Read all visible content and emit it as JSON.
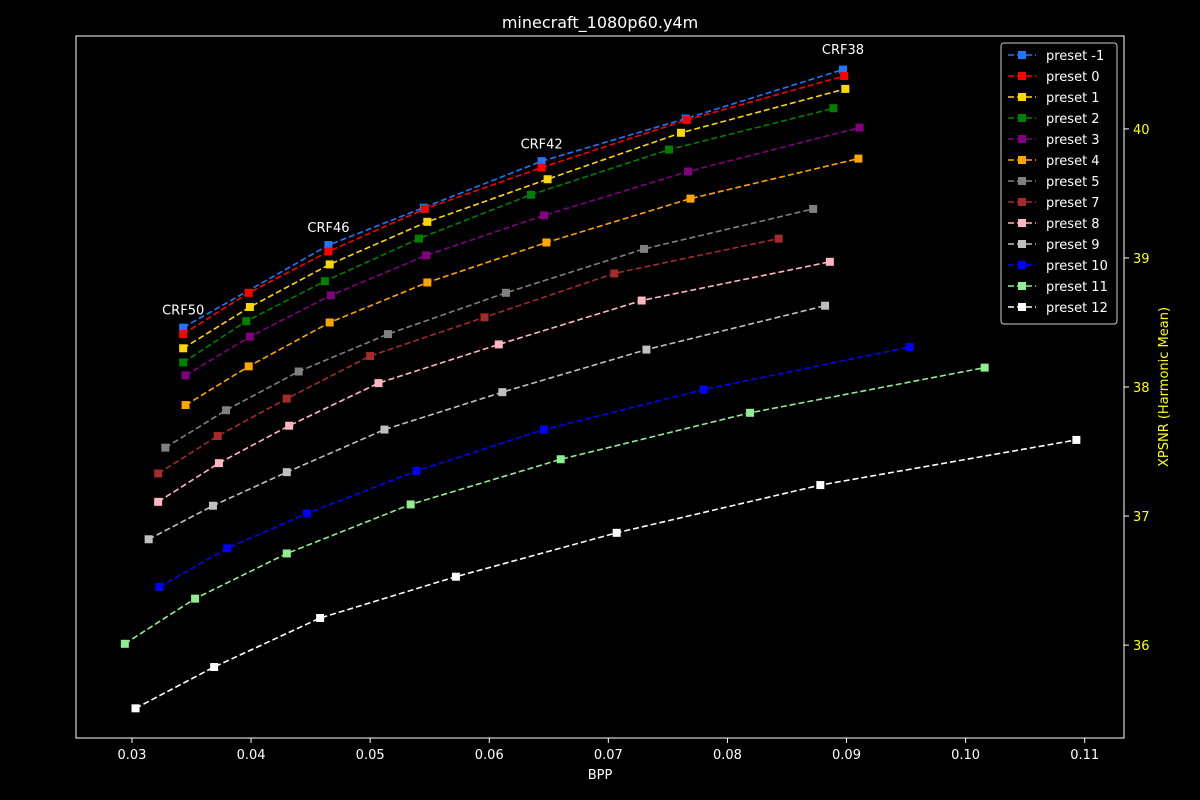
{
  "chart_data": {
    "type": "line",
    "title": "minecraft_1080p60.y4m",
    "xlabel": "BPP",
    "ylabel": "XPSNR (Harmonic Mean)",
    "ylabel_color": "#ffff00",
    "xlim": [
      0.0253,
      0.1133
    ],
    "ylim": [
      35.28,
      40.72
    ],
    "x_ticks": [
      0.03,
      0.04,
      0.05,
      0.06,
      0.07,
      0.08,
      0.09,
      0.1,
      0.11
    ],
    "x_tick_labels": [
      "0.03",
      "0.04",
      "0.05",
      "0.06",
      "0.07",
      "0.08",
      "0.09",
      "0.10",
      "0.11"
    ],
    "y_ticks": [
      36,
      37,
      38,
      39,
      40
    ],
    "y_tick_labels": [
      "36",
      "37",
      "38",
      "39",
      "40"
    ],
    "y_axis_side": "right",
    "y_tick_color": "#ffff00",
    "grid": false,
    "legend_position": "top-right",
    "annotations": [
      {
        "text": "CRF50",
        "x": 0.0343,
        "y": 38.56
      },
      {
        "text": "CRF46",
        "x": 0.0465,
        "y": 39.2
      },
      {
        "text": "CRF42",
        "x": 0.0644,
        "y": 39.85
      },
      {
        "text": "CRF38",
        "x": 0.0897,
        "y": 40.58
      }
    ],
    "series": [
      {
        "name": "preset -1",
        "color": "#1f77ff",
        "x": [
          0.0343,
          0.0465,
          0.0545,
          0.0644,
          0.0765,
          0.0897
        ],
        "y": [
          38.46,
          39.1,
          39.39,
          39.75,
          40.08,
          40.46
        ]
      },
      {
        "name": "preset 0",
        "color": "#ff0000",
        "x": [
          0.0343,
          0.0398,
          0.0465,
          0.0546,
          0.0644,
          0.0766,
          0.0898
        ],
        "y": [
          38.41,
          38.73,
          39.05,
          39.38,
          39.7,
          40.07,
          40.41
        ]
      },
      {
        "name": "preset 1",
        "color": "#ffd700",
        "x": [
          0.0343,
          0.0399,
          0.0466,
          0.0548,
          0.0649,
          0.0761,
          0.0899
        ],
        "y": [
          38.3,
          38.62,
          38.95,
          39.28,
          39.61,
          39.97,
          40.31
        ]
      },
      {
        "name": "preset 2",
        "color": "#008000",
        "x": [
          0.0343,
          0.0396,
          0.0462,
          0.0541,
          0.0635,
          0.0751,
          0.0889
        ],
        "y": [
          38.19,
          38.51,
          38.82,
          39.15,
          39.49,
          39.84,
          40.16
        ]
      },
      {
        "name": "preset 3",
        "color": "#800080",
        "x": [
          0.0345,
          0.0399,
          0.0467,
          0.0547,
          0.0646,
          0.0767,
          0.0911
        ],
        "y": [
          38.09,
          38.39,
          38.71,
          39.02,
          39.33,
          39.67,
          40.01
        ]
      },
      {
        "name": "preset 4",
        "color": "#ffa500",
        "x": [
          0.0345,
          0.0398,
          0.0466,
          0.0548,
          0.0648,
          0.0769,
          0.091
        ],
        "y": [
          37.86,
          38.16,
          38.5,
          38.81,
          39.12,
          39.46,
          39.77
        ]
      },
      {
        "name": "preset 5",
        "color": "#808080",
        "x": [
          0.0328,
          0.0379,
          0.044,
          0.0515,
          0.0614,
          0.073,
          0.0872
        ],
        "y": [
          37.53,
          37.82,
          38.12,
          38.41,
          38.73,
          39.07,
          39.38
        ]
      },
      {
        "name": "preset 7",
        "color": "#a52a2a",
        "x": [
          0.0322,
          0.0372,
          0.043,
          0.05,
          0.0596,
          0.0705,
          0.0843
        ],
        "y": [
          37.33,
          37.62,
          37.91,
          38.24,
          38.54,
          38.88,
          39.15
        ]
      },
      {
        "name": "preset 8",
        "color": "#ffb6c1",
        "x": [
          0.0322,
          0.0373,
          0.0432,
          0.0507,
          0.0608,
          0.0728,
          0.0886
        ],
        "y": [
          37.11,
          37.41,
          37.7,
          38.03,
          38.33,
          38.67,
          38.97
        ]
      },
      {
        "name": "preset 9",
        "color": "#c0c0c0",
        "x": [
          0.0314,
          0.0368,
          0.043,
          0.0512,
          0.0611,
          0.0732,
          0.0882
        ],
        "y": [
          36.82,
          37.08,
          37.34,
          37.67,
          37.96,
          38.29,
          38.63
        ]
      },
      {
        "name": "preset 10",
        "color": "#0000ff",
        "x": [
          0.0323,
          0.038,
          0.0447,
          0.0539,
          0.0646,
          0.078,
          0.0953
        ],
        "y": [
          36.45,
          36.75,
          37.02,
          37.35,
          37.67,
          37.98,
          38.31
        ]
      },
      {
        "name": "preset 11",
        "color": "#90ee90",
        "x": [
          0.0294,
          0.0353,
          0.043,
          0.0534,
          0.066,
          0.0819,
          0.1016
        ],
        "y": [
          36.01,
          36.36,
          36.71,
          37.09,
          37.44,
          37.8,
          38.15
        ]
      },
      {
        "name": "preset 12",
        "color": "#ffffff",
        "x": [
          0.0303,
          0.0369,
          0.0458,
          0.0572,
          0.0707,
          0.0878,
          0.1093
        ],
        "y": [
          35.51,
          35.83,
          36.21,
          36.53,
          36.87,
          37.24,
          37.59
        ]
      }
    ]
  }
}
